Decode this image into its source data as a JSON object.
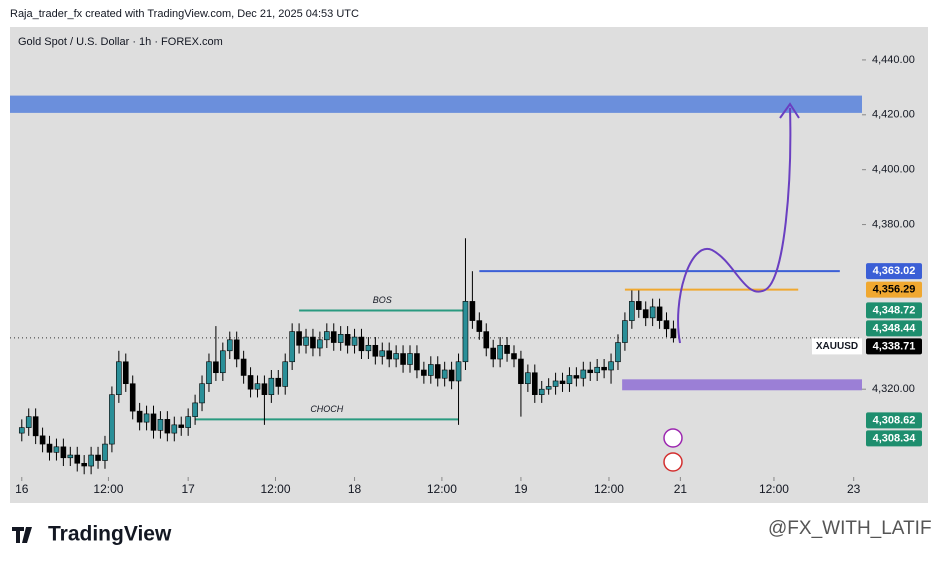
{
  "header": {
    "credit": "Raja_trader_fx created with TradingView.com, Dec 21, 2025 04:53 UTC"
  },
  "footer": {
    "logo": "TradingView",
    "watermark": "@FX_WITH_LATIF"
  },
  "chart_data": {
    "type": "candlestick",
    "title": "Gold Spot / U.S. Dollar · 1h · FOREX.com",
    "symbol": "XAUUSD",
    "up_color": "#2a8f98",
    "down_color": "#000000",
    "x": [
      0,
      1,
      2,
      3,
      4,
      5,
      6,
      7,
      8,
      9,
      10,
      11,
      12,
      13,
      14,
      15,
      16,
      17,
      18,
      19,
      20,
      21,
      22,
      23,
      24,
      25,
      26,
      27,
      28,
      29,
      30,
      31,
      32,
      33,
      34,
      35,
      36,
      37,
      38,
      39,
      40,
      41,
      42,
      43,
      44,
      45,
      46,
      47,
      48,
      49,
      50,
      51,
      52,
      53,
      54,
      55,
      56,
      57,
      58,
      59,
      60,
      61,
      62,
      63,
      64,
      65,
      66,
      67,
      68,
      69,
      70,
      71,
      72,
      73,
      74,
      75,
      76,
      77,
      78,
      79,
      80,
      81,
      82,
      83,
      84,
      85,
      86,
      87,
      88,
      89,
      90,
      91,
      92,
      93,
      94
    ],
    "open": [
      4304,
      4306,
      4310,
      4303,
      4300,
      4297,
      4299,
      4295,
      4296,
      4293,
      4292,
      4296,
      4294,
      4300,
      4318,
      4330,
      4322,
      4312,
      4308,
      4311,
      4305,
      4309,
      4304,
      4307,
      4306,
      4310,
      4315,
      4322,
      4330,
      4326,
      4334,
      4338,
      4331,
      4325,
      4320,
      4322,
      4318,
      4324,
      4321,
      4330,
      4341,
      4336,
      4339,
      4335,
      4338,
      4341,
      4337,
      4340,
      4336,
      4339,
      4334,
      4336,
      4332,
      4334,
      4331,
      4333,
      4329,
      4333,
      4327,
      4325,
      4329,
      4324,
      4327,
      4323,
      4330,
      4352,
      4345,
      4341,
      4335,
      4331,
      4336,
      4333,
      4331,
      4322,
      4326,
      4318,
      4320,
      4321,
      4323,
      4322,
      4325,
      4324,
      4327,
      4326,
      4328,
      4327,
      4330,
      4337,
      4345,
      4352,
      4349,
      4346,
      4350,
      4345,
      4342
    ],
    "high": [
      4309,
      4313,
      4313,
      4306,
      4303,
      4302,
      4302,
      4299,
      4299,
      4296,
      4299,
      4299,
      4303,
      4321,
      4334,
      4333,
      4325,
      4315,
      4314,
      4314,
      4312,
      4312,
      4310,
      4310,
      4313,
      4318,
      4325,
      4333,
      4343,
      4337,
      4341,
      4341,
      4334,
      4328,
      4325,
      4325,
      4327,
      4327,
      4333,
      4344,
      4344,
      4342,
      4342,
      4341,
      4344,
      4344,
      4343,
      4343,
      4342,
      4342,
      4339,
      4339,
      4337,
      4337,
      4336,
      4336,
      4336,
      4336,
      4330,
      4332,
      4332,
      4330,
      4330,
      4333,
      4375,
      4363,
      4348,
      4344,
      4338,
      4339,
      4339,
      4336,
      4334,
      4329,
      4329,
      4323,
      4324,
      4326,
      4326,
      4328,
      4328,
      4330,
      4330,
      4331,
      4331,
      4333,
      4340,
      4348,
      4356,
      4356,
      4352,
      4353,
      4353,
      4348,
      4345
    ],
    "low": [
      4301,
      4303,
      4300,
      4297,
      4294,
      4294,
      4292,
      4292,
      4290,
      4289,
      4289,
      4291,
      4291,
      4297,
      4315,
      4319,
      4309,
      4305,
      4305,
      4302,
      4302,
      4301,
      4301,
      4303,
      4303,
      4307,
      4312,
      4319,
      4323,
      4323,
      4331,
      4328,
      4322,
      4317,
      4317,
      4307,
      4315,
      4318,
      4318,
      4327,
      4333,
      4333,
      4332,
      4332,
      4335,
      4334,
      4334,
      4333,
      4333,
      4331,
      4331,
      4329,
      4329,
      4328,
      4328,
      4326,
      4326,
      4324,
      4322,
      4322,
      4321,
      4321,
      4320,
      4307,
      4327,
      4342,
      4338,
      4332,
      4328,
      4328,
      4330,
      4328,
      4310,
      4319,
      4315,
      4315,
      4318,
      4318,
      4319,
      4319,
      4321,
      4321,
      4323,
      4323,
      4324,
      4322,
      4327,
      4334,
      4342,
      4346,
      4343,
      4343,
      4342,
      4339,
      4337
    ],
    "close": [
      4306,
      4310,
      4303,
      4300,
      4297,
      4299,
      4295,
      4296,
      4293,
      4292,
      4296,
      4294,
      4300,
      4318,
      4330,
      4322,
      4312,
      4308,
      4311,
      4305,
      4309,
      4304,
      4307,
      4306,
      4310,
      4315,
      4322,
      4330,
      4326,
      4334,
      4338,
      4331,
      4325,
      4320,
      4322,
      4318,
      4324,
      4321,
      4330,
      4341,
      4336,
      4339,
      4335,
      4338,
      4341,
      4337,
      4340,
      4336,
      4339,
      4334,
      4336,
      4332,
      4334,
      4331,
      4333,
      4329,
      4333,
      4327,
      4325,
      4329,
      4324,
      4327,
      4323,
      4330,
      4352,
      4345,
      4341,
      4335,
      4331,
      4336,
      4333,
      4331,
      4322,
      4326,
      4318,
      4320,
      4321,
      4323,
      4322,
      4325,
      4324,
      4327,
      4326,
      4328,
      4327,
      4330,
      4337,
      4345,
      4352,
      4349,
      4346,
      4350,
      4345,
      4342,
      4338.71
    ],
    "xlim": [
      -1.7,
      121.2
    ],
    "xticks": [
      {
        "value": 0,
        "label": "16"
      },
      {
        "value": 12.5,
        "label": "12:00"
      },
      {
        "value": 24,
        "label": "17"
      },
      {
        "value": 36.6,
        "label": "12:00"
      },
      {
        "value": 48,
        "label": "18"
      },
      {
        "value": 60.6,
        "label": "12:00"
      },
      {
        "value": 72,
        "label": "19"
      },
      {
        "value": 84.7,
        "label": "12:00"
      },
      {
        "value": 95,
        "label": "21"
      },
      {
        "value": 108.5,
        "label": "12:00"
      },
      {
        "value": 120,
        "label": "23"
      }
    ],
    "ylim": [
      4288,
      4452
    ],
    "yticks": [
      {
        "value": 4440,
        "label": "4,440.00"
      },
      {
        "value": 4420,
        "label": "4,420.00"
      },
      {
        "value": 4400,
        "label": "4,400.00"
      },
      {
        "value": 4380,
        "label": "4,380.00"
      },
      {
        "value": 4320,
        "label": "4,320.00"
      }
    ],
    "zones": [
      {
        "from": 4420.7,
        "to": 4427,
        "x": [
          -1.7,
          121.2
        ],
        "color": "#6b8fdc"
      },
      {
        "from": 4319.6,
        "to": 4323.6,
        "x": [
          86.6,
          121.2
        ],
        "color": "#9b7fd6"
      }
    ],
    "lines": [
      {
        "value": 4363.02,
        "x": [
          66,
          118
        ],
        "color": "#3b5fd6"
      },
      {
        "value": 4356.29,
        "x": [
          87,
          112
        ],
        "color": "#f0a830"
      },
      {
        "value": 4348.7,
        "x": [
          40,
          64
        ],
        "color": "#2a9a80",
        "label": "BOS"
      },
      {
        "value": 4309,
        "x": [
          25,
          63
        ],
        "color": "#2a9a80",
        "label": "CHOCH"
      }
    ],
    "price_labels": [
      {
        "value": 4363.02,
        "label": "4,363.02",
        "color": "#3b5fd6"
      },
      {
        "value": 4356.29,
        "label": "4,356.29",
        "color": "#f0a830"
      },
      {
        "value": 4348.72,
        "label": "4,348.72",
        "color": "#1e8e6e"
      },
      {
        "value": 4348.44,
        "label": "4,348.44",
        "color": "#1e8e6e"
      },
      {
        "value": 4338.71,
        "label": "4,338.71",
        "color": "#000000"
      },
      {
        "value": 4308.62,
        "label": "4,308.62",
        "color": "#1e8e6e"
      },
      {
        "value": 4308.34,
        "label": "4,308.34",
        "color": "#1e8e6e"
      }
    ]
  }
}
